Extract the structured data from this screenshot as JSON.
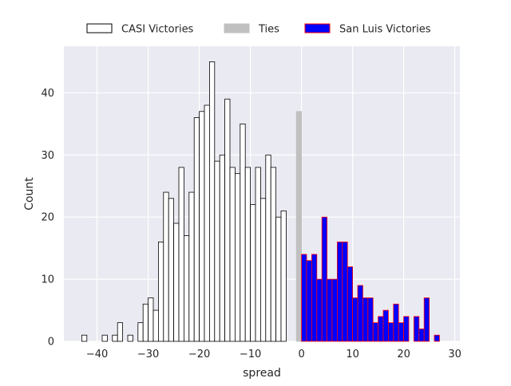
{
  "chart_data": {
    "type": "bar",
    "xlabel": "spread",
    "ylabel": "Count",
    "xlim": [
      -46.5,
      31
    ],
    "ylim": [
      0,
      47.5
    ],
    "xticks": [
      -40,
      -30,
      -20,
      -10,
      0,
      10,
      20,
      30
    ],
    "yticks": [
      0,
      10,
      20,
      30,
      40
    ],
    "bin_width": 1,
    "grid": true,
    "legend_position": "top-center",
    "background_color": "#eaeaf2",
    "grid_color": "#ffffff",
    "legend": [
      {
        "label": "CASI Victories",
        "fill": "#ffffff",
        "stroke": "#000000"
      },
      {
        "label": "Ties",
        "fill": "#c0c0c0",
        "stroke": "#c0c0c0"
      },
      {
        "label": "San Luis Victories",
        "fill": "#0000ff",
        "stroke": "#ff0000"
      }
    ],
    "series": [
      {
        "name": "CASI Victories",
        "fill": "#ffffff",
        "stroke": "#000000",
        "x": [
          -43,
          -42,
          -41,
          -40,
          -39,
          -38,
          -37,
          -36,
          -35,
          -34,
          -33,
          -32,
          -31,
          -30,
          -29,
          -28,
          -27,
          -26,
          -25,
          -24,
          -23,
          -22,
          -21,
          -20,
          -19,
          -18,
          -17,
          -16,
          -15,
          -14,
          -13,
          -12,
          -11,
          -10,
          -9,
          -8,
          -7,
          -6,
          -5,
          -4,
          -3,
          -2,
          -1
        ],
        "values": [
          1,
          0,
          0,
          0,
          1,
          0,
          1,
          3,
          0,
          1,
          0,
          3,
          6,
          7,
          5,
          16,
          24,
          23,
          19,
          28,
          17,
          24,
          36,
          37,
          38,
          45,
          29,
          30,
          39,
          28,
          27,
          35,
          28,
          22,
          28,
          23,
          30,
          28,
          20,
          21,
          0,
          0,
          0
        ]
      },
      {
        "name": "Ties",
        "fill": "#c0c0c0",
        "stroke": "#c0c0c0",
        "x": [
          -1
        ],
        "values": [
          37
        ]
      },
      {
        "name": "San Luis Victories",
        "fill": "#0000ff",
        "stroke": "#ff0000",
        "x": [
          0,
          1,
          2,
          3,
          4,
          5,
          6,
          7,
          8,
          9,
          10,
          11,
          12,
          13,
          14,
          15,
          16,
          17,
          18,
          19,
          20,
          21,
          22,
          23,
          24,
          25,
          26,
          27
        ],
        "values": [
          14,
          13,
          14,
          10,
          20,
          10,
          10,
          16,
          16,
          12,
          7,
          9,
          7,
          7,
          3,
          4,
          5,
          3,
          6,
          3,
          4,
          0,
          4,
          2,
          7,
          0,
          1,
          0
        ]
      }
    ]
  }
}
